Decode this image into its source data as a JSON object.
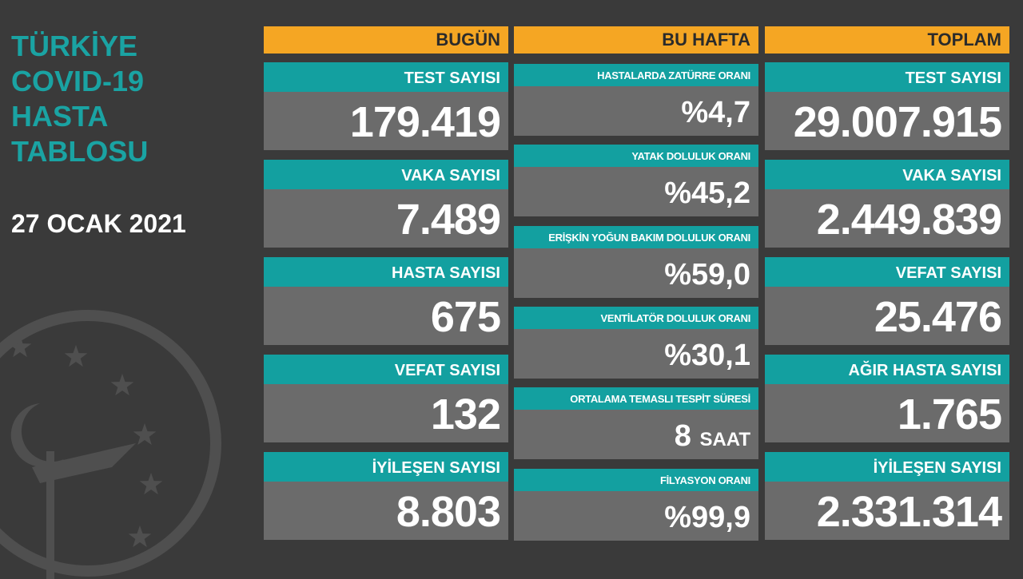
{
  "title": [
    "TÜRKİYE",
    "COVID-19",
    "HASTA",
    "TABLOSU"
  ],
  "date": "27 OCAK 2021",
  "colors": {
    "teal": "#13a0a0",
    "orange": "#f5a623",
    "background": "#3a3a3a",
    "value_bg": "#6b6b6b"
  },
  "today": {
    "header": "BUGÜN",
    "items": [
      {
        "label": "TEST SAYISI",
        "value": "179.419"
      },
      {
        "label": "VAKA SAYISI",
        "value": "7.489"
      },
      {
        "label": "HASTA SAYISI",
        "value": "675"
      },
      {
        "label": "VEFAT SAYISI",
        "value": "132"
      },
      {
        "label": "İYİLEŞEN SAYISI",
        "value": "8.803"
      }
    ]
  },
  "week": {
    "header": "BU HAFTA",
    "items": [
      {
        "label": "HASTALARDA ZATÜRRE ORANI",
        "value": "%4,7"
      },
      {
        "label": "YATAK DOLULUK ORANI",
        "value": "%45,2"
      },
      {
        "label": "ERİŞKİN YOĞUN BAKIM DOLULUK ORANI",
        "value": "%59,0"
      },
      {
        "label": "VENTİLATÖR DOLULUK ORANI",
        "value": "%30,1"
      },
      {
        "label": "ORTALAMA TEMASLI TESPİT SÜRESİ",
        "value": "8",
        "unit": "SAAT"
      },
      {
        "label": "FİLYASYON ORANI",
        "value": "%99,9"
      }
    ]
  },
  "total": {
    "header": "TOPLAM",
    "items": [
      {
        "label": "TEST SAYISI",
        "value": "29.007.915"
      },
      {
        "label": "VAKA SAYISI",
        "value": "2.449.839"
      },
      {
        "label": "VEFAT SAYISI",
        "value": "25.476"
      },
      {
        "label": "AĞIR HASTA SAYISI",
        "value": "1.765"
      },
      {
        "label": "İYİLEŞEN SAYISI",
        "value": "2.331.314"
      }
    ]
  }
}
